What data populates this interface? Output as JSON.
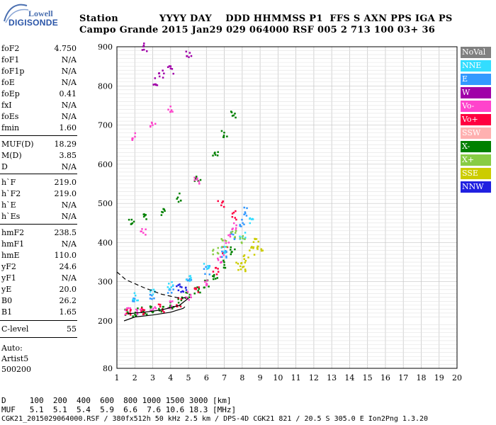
{
  "logo": {
    "line1": "Lowell",
    "line2": "DIGISONDE"
  },
  "header": {
    "row1": "Station            YYYY DAY    DDD HHMMSS P1  FFS S AXN PPS IGA PS",
    "row2": "Campo Grande 2015 Jan29 029 064000 RSF 005 2 713 100 03+ 36"
  },
  "params": [
    {
      "k": "foF2",
      "v": "4.750"
    },
    {
      "k": "foF1",
      "v": "N/A"
    },
    {
      "k": "foF1p",
      "v": "N/A"
    },
    {
      "k": "foE",
      "v": "N/A"
    },
    {
      "k": "foEp",
      "v": "0.41"
    },
    {
      "k": "fxI",
      "v": "N/A"
    },
    {
      "k": "foEs",
      "v": "N/A"
    },
    {
      "k": "fmin",
      "v": "1.60"
    },
    {
      "k": "MUF(D)",
      "v": "18.29"
    },
    {
      "k": "M(D)",
      "v": "3.85"
    },
    {
      "k": "D",
      "v": "N/A"
    },
    {
      "k": "h`F",
      "v": "219.0"
    },
    {
      "k": "h`F2",
      "v": "219.0"
    },
    {
      "k": "h`E",
      "v": "N/A"
    },
    {
      "k": "h`Es",
      "v": "N/A"
    },
    {
      "k": "hmF2",
      "v": "238.5"
    },
    {
      "k": "hmF1",
      "v": "N/A"
    },
    {
      "k": "hmE",
      "v": "110.0"
    },
    {
      "k": "yF2",
      "v": "24.6"
    },
    {
      "k": "yF1",
      "v": "N/A"
    },
    {
      "k": "yE",
      "v": "20.0"
    },
    {
      "k": "B0",
      "v": "26.2"
    },
    {
      "k": "B1",
      "v": "1.65"
    },
    {
      "k": "C-level",
      "v": "55"
    }
  ],
  "auto": {
    "l1": "Auto:",
    "l2": "Artist5",
    "l3": "500200"
  },
  "legend": [
    {
      "label": "NoVal",
      "color": "#808080"
    },
    {
      "label": "NNE",
      "color": "#33ddff"
    },
    {
      "label": "E",
      "color": "#3399ff"
    },
    {
      "label": "W",
      "color": "#a000a8"
    },
    {
      "label": "Vo-",
      "color": "#ff44cc"
    },
    {
      "label": "Vo+",
      "color": "#ff0040"
    },
    {
      "label": "SSW",
      "color": "#ffb0b0"
    },
    {
      "label": "X-",
      "color": "#008000"
    },
    {
      "label": "X+",
      "color": "#88cc44"
    },
    {
      "label": "SSE",
      "color": "#cccc00"
    },
    {
      "label": "NNW",
      "color": "#2020e0"
    }
  ],
  "chart_data": {
    "type": "scatter",
    "x_ticks": [
      1,
      2,
      3,
      4,
      5,
      6,
      7,
      8,
      9,
      10,
      11,
      12,
      13,
      14,
      15,
      16,
      17,
      18,
      19,
      20
    ],
    "y_ticks": [
      80,
      200,
      300,
      400,
      500,
      600,
      700,
      800,
      900
    ],
    "xlim": [
      1,
      20
    ],
    "ylim": [
      80,
      900
    ],
    "grid": true,
    "legend_position": "right",
    "series": [
      {
        "name": "X-",
        "color": "#008000",
        "points": [
          [
            1.6,
            221
          ],
          [
            2.0,
            222
          ],
          [
            2.5,
            224
          ],
          [
            3.0,
            228
          ],
          [
            3.5,
            233
          ],
          [
            4.0,
            240
          ],
          [
            4.5,
            250
          ],
          [
            5.0,
            262
          ],
          [
            5.5,
            278
          ],
          [
            6.0,
            296
          ],
          [
            6.5,
            318
          ],
          [
            7.0,
            345
          ],
          [
            7.5,
            380
          ],
          [
            1.8,
            450
          ],
          [
            2.5,
            462
          ],
          [
            3.5,
            480
          ],
          [
            4.5,
            515
          ],
          [
            5.5,
            560
          ],
          [
            6.5,
            630
          ],
          [
            7.0,
            680
          ],
          [
            7.5,
            730
          ]
        ]
      },
      {
        "name": "Vo-",
        "color": "#ff44cc",
        "points": [
          [
            1.6,
            223
          ],
          [
            2.2,
            225
          ],
          [
            3.0,
            230
          ],
          [
            4.0,
            241
          ],
          [
            5.0,
            264
          ],
          [
            6.0,
            300
          ],
          [
            6.8,
            360
          ],
          [
            7.2,
            410
          ],
          [
            7.6,
            440
          ],
          [
            2.0,
            670
          ],
          [
            3.0,
            700
          ],
          [
            4.0,
            740
          ],
          [
            2.5,
            430
          ],
          [
            5.5,
            560
          ]
        ]
      },
      {
        "name": "Vo+",
        "color": "#ff0040",
        "points": [
          [
            1.6,
            222
          ],
          [
            2.5,
            226
          ],
          [
            3.5,
            232
          ],
          [
            4.5,
            248
          ],
          [
            5.5,
            282
          ],
          [
            6.5,
            330
          ],
          [
            7.0,
            380
          ],
          [
            7.5,
            470
          ],
          [
            6.8,
            500
          ]
        ]
      },
      {
        "name": "E",
        "color": "#3399ff",
        "points": [
          [
            2.0,
            258
          ],
          [
            3.0,
            265
          ],
          [
            4.0,
            280
          ],
          [
            5.0,
            300
          ],
          [
            6.0,
            330
          ],
          [
            7.0,
            370
          ],
          [
            7.5,
            420
          ],
          [
            8.0,
            450
          ],
          [
            8.2,
            480
          ]
        ]
      },
      {
        "name": "NNE",
        "color": "#33ddff",
        "points": [
          [
            2.0,
            262
          ],
          [
            3.0,
            270
          ],
          [
            4.0,
            290
          ],
          [
            5.0,
            310
          ],
          [
            6.0,
            340
          ],
          [
            7.0,
            380
          ],
          [
            8.0,
            420
          ],
          [
            8.5,
            460
          ]
        ]
      },
      {
        "name": "W",
        "color": "#a000a8",
        "points": [
          [
            3.2,
            810
          ],
          [
            4.0,
            840
          ],
          [
            5.0,
            880
          ],
          [
            2.5,
            900
          ],
          [
            3.5,
            830
          ]
        ]
      },
      {
        "name": "SSE",
        "color": "#cccc00",
        "points": [
          [
            7.8,
            340
          ],
          [
            8.2,
            360
          ],
          [
            8.5,
            380
          ],
          [
            8.8,
            400
          ],
          [
            9.0,
            390
          ],
          [
            8.0,
            330
          ]
        ]
      },
      {
        "name": "X+",
        "color": "#88cc44",
        "points": [
          [
            7.0,
            400
          ],
          [
            7.5,
            420
          ],
          [
            8.0,
            410
          ],
          [
            6.5,
            380
          ]
        ]
      },
      {
        "name": "NNW",
        "color": "#2020e0",
        "points": [
          [
            4.5,
            285
          ],
          [
            4.7,
            280
          ]
        ]
      }
    ],
    "profile_lines": [
      {
        "style": "solid",
        "points": [
          [
            1.4,
            200
          ],
          [
            2,
            210
          ],
          [
            3,
            215
          ],
          [
            4,
            222
          ],
          [
            4.7,
            232
          ],
          [
            4.8,
            236
          ]
        ]
      },
      {
        "style": "solid",
        "points": [
          [
            1.6,
            218
          ],
          [
            2.5,
            222
          ],
          [
            3.5,
            228
          ],
          [
            4.5,
            240
          ],
          [
            5.0,
            258
          ]
        ]
      },
      {
        "style": "dashed",
        "points": [
          [
            1,
            325
          ],
          [
            1.5,
            305
          ],
          [
            2.5,
            285
          ],
          [
            3.5,
            268
          ],
          [
            4.5,
            258
          ],
          [
            5.0,
            260
          ]
        ]
      }
    ]
  },
  "footer": {
    "line1": "D     100  200  400  600  800 1000 1500 3000 [km]",
    "line2": "MUF   5.1  5.1  5.4  5.9  6.6  7.6 10.6 18.3 [MHz]",
    "line3": "CGK21_2015029064000.RSF / 380fx512h 50 kHz 2.5 km / DPS-4D CGK21 821 / 20.5 S 305.0 E Ion2Png 1.3.20"
  }
}
